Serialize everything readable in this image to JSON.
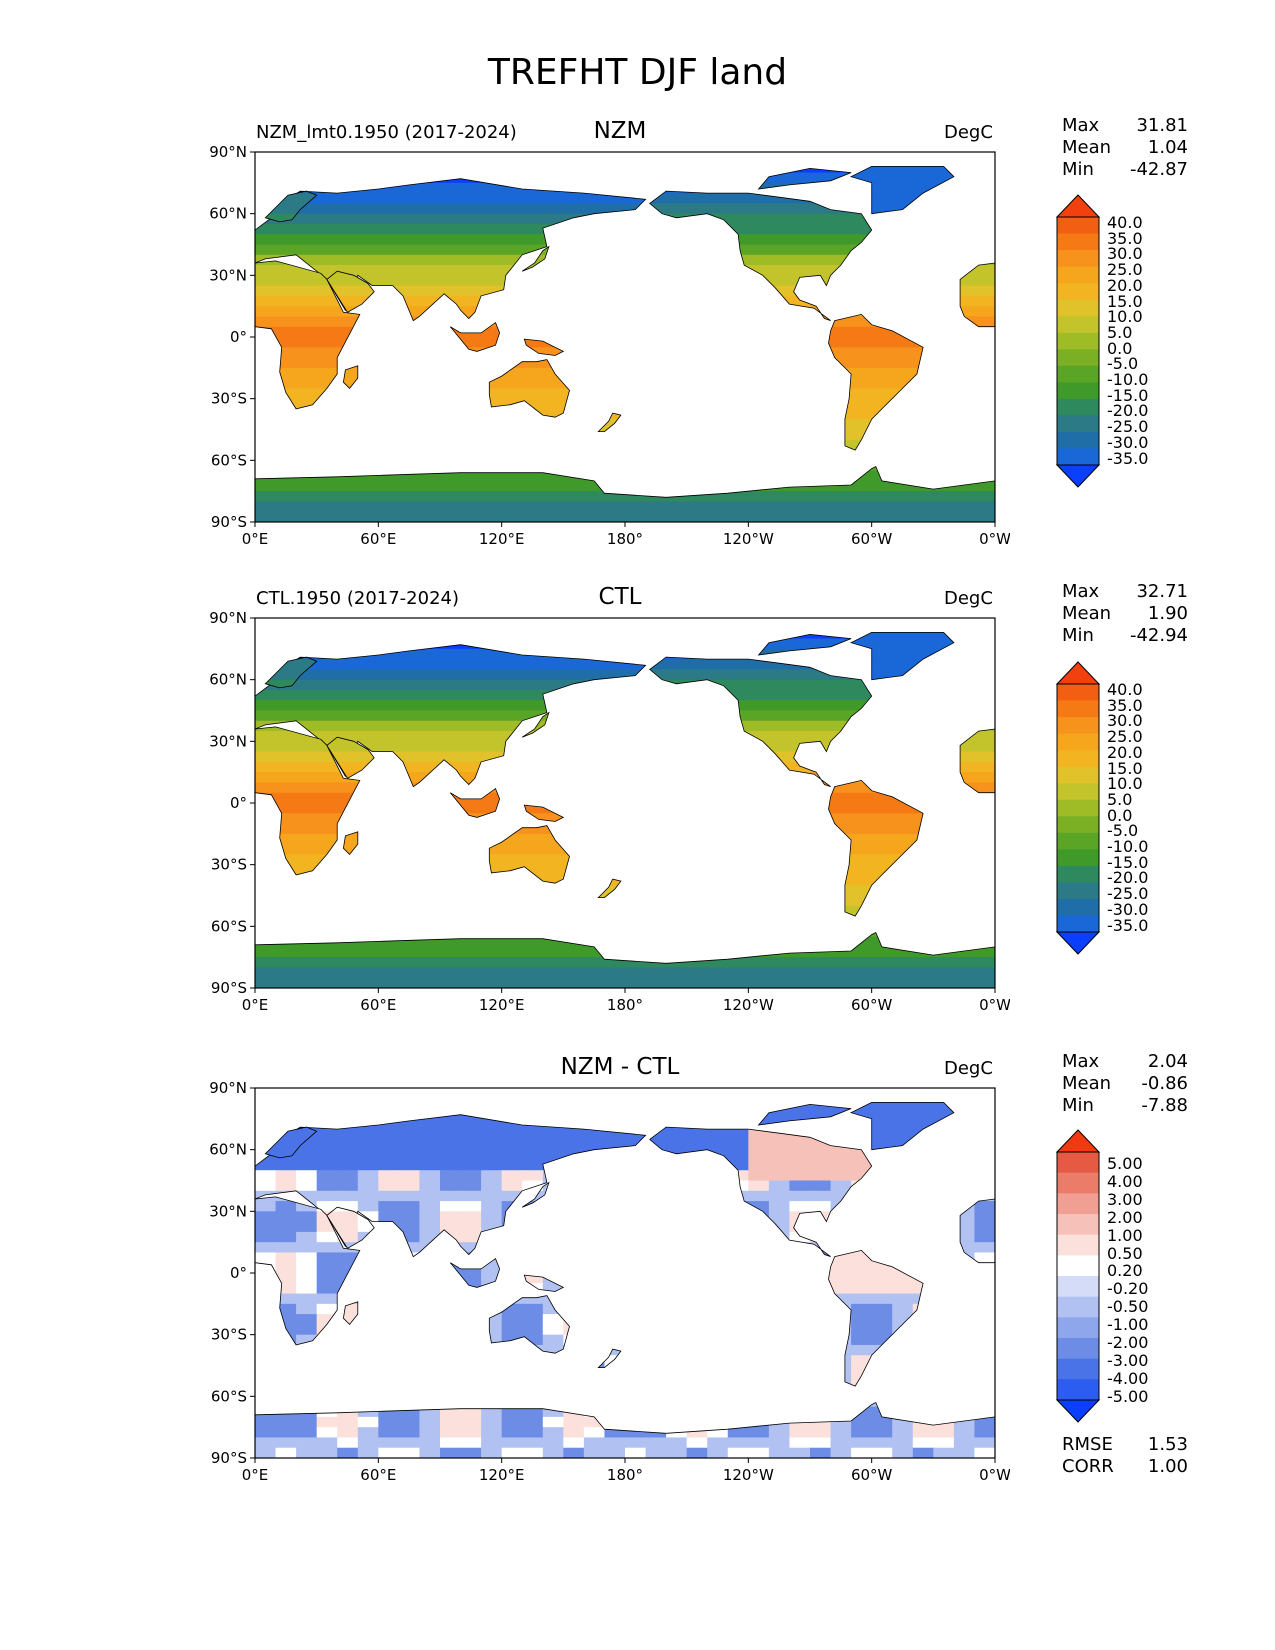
{
  "figure": {
    "title": "TREFHT DJF land"
  },
  "colors": {
    "abs_scale": [
      "#0b3fff",
      "#1a67d8",
      "#1f6ea8",
      "#2b7a86",
      "#2e8a5e",
      "#3f9a2a",
      "#5aa426",
      "#7bb024",
      "#9fbb26",
      "#c3c42c",
      "#e1c22a",
      "#f2b420",
      "#f6a61c",
      "#f7921c",
      "#f57a16",
      "#f35f12",
      "#f2400e"
    ],
    "diff_scale": [
      "#0b3fff",
      "#2c5cf0",
      "#4b73e8",
      "#6c8ce6",
      "#8ea6ec",
      "#b1c2f2",
      "#d4dcf8",
      "#ffffff",
      "#fbe0dc",
      "#f6c1b9",
      "#f09f92",
      "#ec7c6a",
      "#e65a44",
      "#f23a10"
    ],
    "ocean": "#ffffff",
    "coast": "#000000"
  },
  "panels": [
    {
      "left_label": "NZM_lmt0.1950 (2017-2024)",
      "center_title": "NZM",
      "units": "DegC",
      "field": "abs",
      "stats": [
        {
          "label": "Max",
          "value": "31.81"
        },
        {
          "label": "Mean",
          "value": "1.04"
        },
        {
          "label": "Min",
          "value": "-42.87"
        }
      ],
      "colorbar_labels": [
        "40.0",
        "35.0",
        "30.0",
        "25.0",
        "20.0",
        "15.0",
        "10.0",
        "5.0",
        "0.0",
        "-5.0",
        "-10.0",
        "-15.0",
        "-20.0",
        "-25.0",
        "-30.0",
        "-35.0"
      ]
    },
    {
      "left_label": "CTL.1950 (2017-2024)",
      "center_title": "CTL",
      "units": "DegC",
      "field": "abs",
      "stats": [
        {
          "label": "Max",
          "value": "32.71"
        },
        {
          "label": "Mean",
          "value": "1.90"
        },
        {
          "label": "Min",
          "value": "-42.94"
        }
      ],
      "colorbar_labels": [
        "40.0",
        "35.0",
        "30.0",
        "25.0",
        "20.0",
        "15.0",
        "10.0",
        "5.0",
        "0.0",
        "-5.0",
        "-10.0",
        "-15.0",
        "-20.0",
        "-25.0",
        "-30.0",
        "-35.0"
      ]
    },
    {
      "left_label": "",
      "center_title": "NZM - CTL",
      "units": "DegC",
      "field": "diff",
      "stats": [
        {
          "label": "Max",
          "value": "2.04"
        },
        {
          "label": "Mean",
          "value": "-0.86"
        },
        {
          "label": "Min",
          "value": "-7.88"
        }
      ],
      "extra_stats": [
        {
          "label": "RMSE",
          "value": "1.53"
        },
        {
          "label": "CORR",
          "value": "1.00"
        }
      ],
      "colorbar_labels": [
        "5.00",
        "4.00",
        "3.00",
        "2.00",
        "1.00",
        "0.50",
        "0.20",
        "-0.20",
        "-0.50",
        "-1.00",
        "-2.00",
        "-3.00",
        "-4.00",
        "-5.00"
      ]
    }
  ],
  "axes": {
    "lat_ticks": [
      "90°N",
      "60°N",
      "30°N",
      "0°",
      "30°S",
      "60°S",
      "90°S"
    ],
    "lon_ticks": [
      "0°E",
      "60°E",
      "120°E",
      "180°",
      "120°W",
      "60°W",
      "0°W"
    ]
  }
}
